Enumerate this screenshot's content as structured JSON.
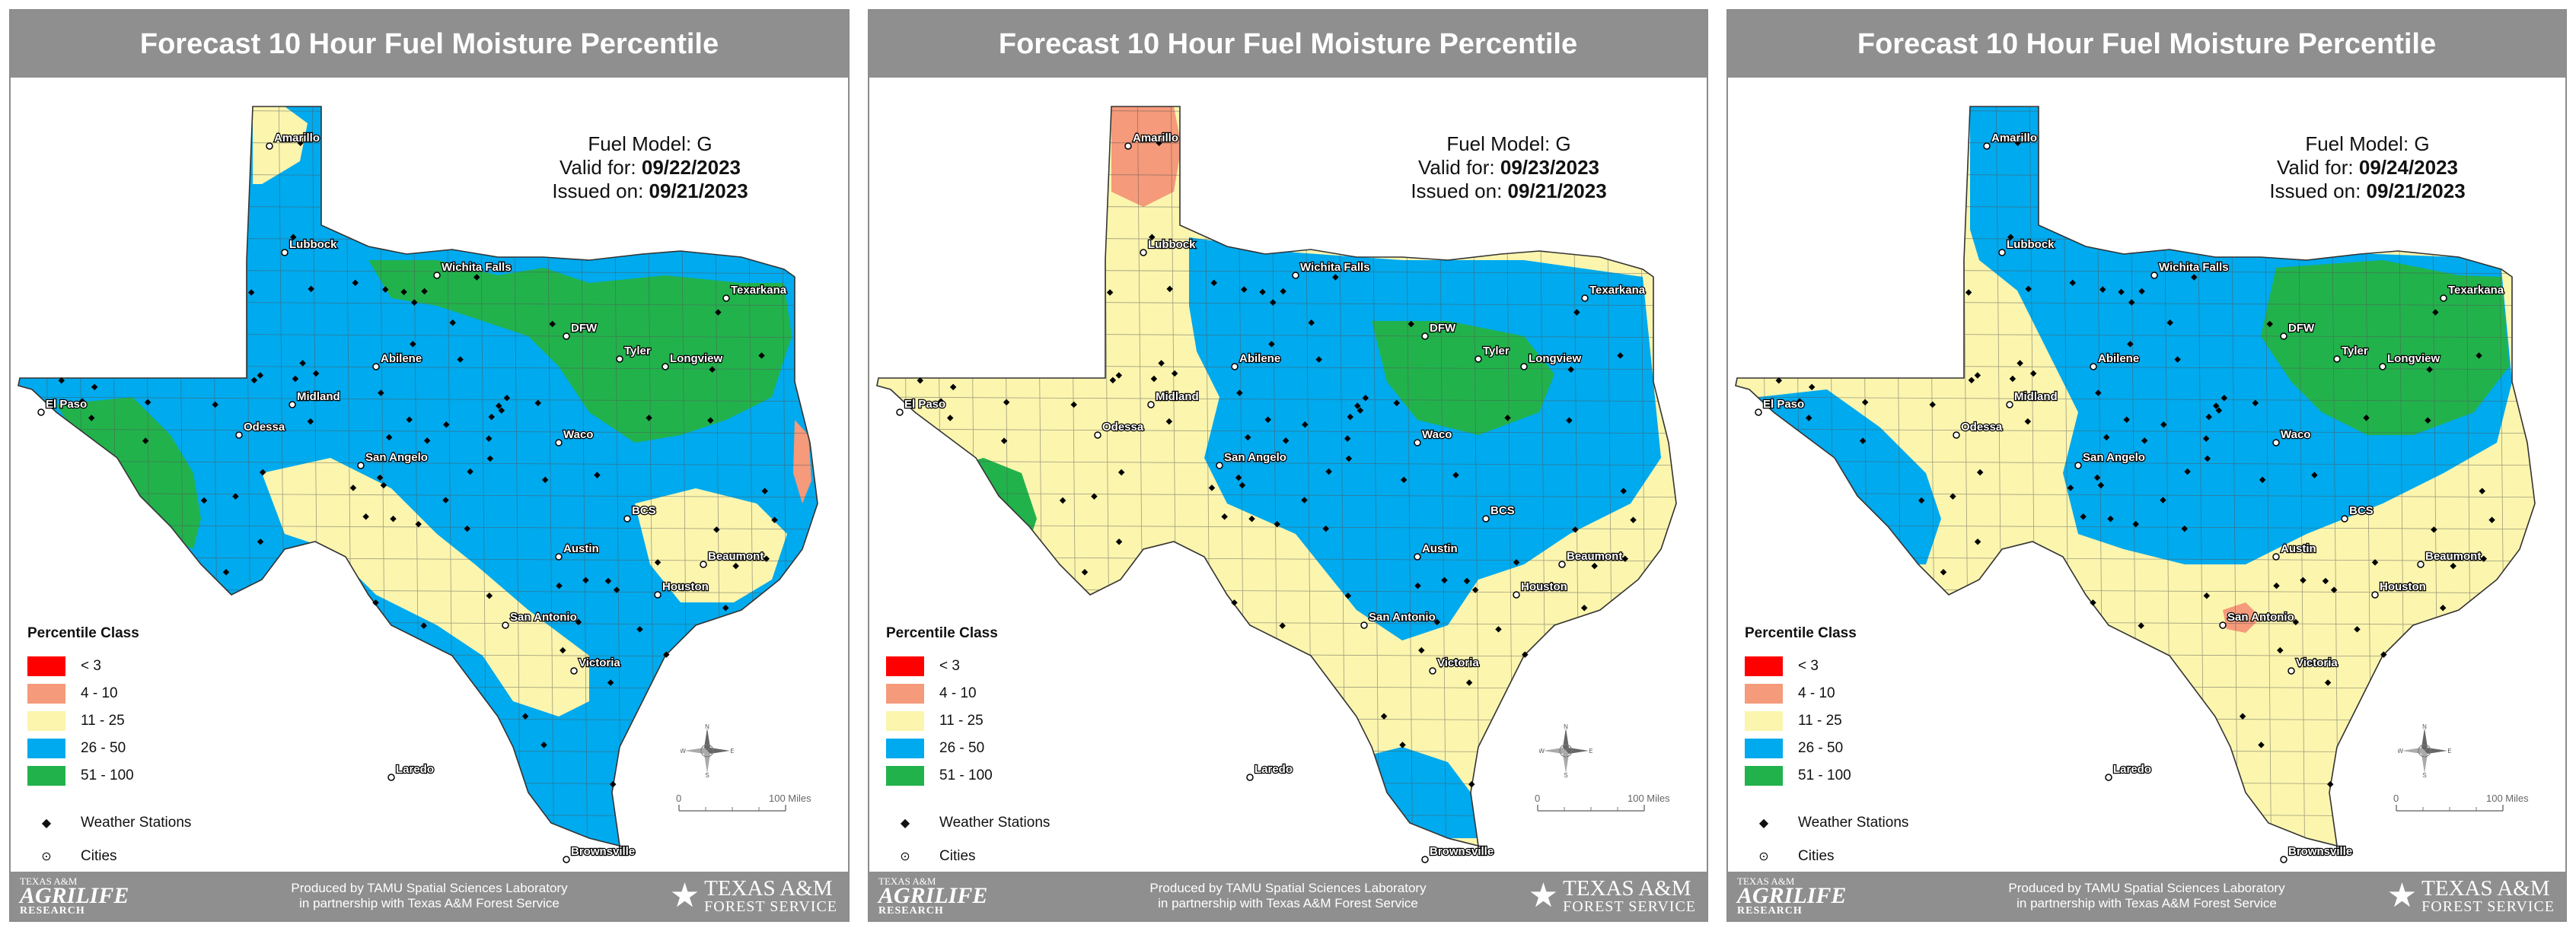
{
  "panels": [
    {
      "title": "Forecast 10 Hour Fuel Moisture Percentile",
      "fuel_model": "Fuel Model: G",
      "valid_label": "Valid for: ",
      "valid_date": "09/22/2023",
      "issued_label": "Issued on: ",
      "issued_date": "09/21/2023",
      "base_class": "26 - 50",
      "regions": [
        {
          "class": "11 - 25",
          "area": "northern panhandle tip"
        },
        {
          "class": "51 - 100",
          "area": "north-central Texas around DFW and Texarkana"
        },
        {
          "class": "51 - 100",
          "area": "far west Texas"
        },
        {
          "class": "11 - 25",
          "area": "south Texas and Rio Grande"
        },
        {
          "class": "11 - 25",
          "area": "southeast coast near Houston/Beaumont"
        },
        {
          "class": "4 - 10",
          "area": "east border spot"
        }
      ]
    },
    {
      "title": "Forecast 10 Hour Fuel Moisture Percentile",
      "fuel_model": "Fuel Model: G",
      "valid_label": "Valid for: ",
      "valid_date": "09/23/2023",
      "issued_label": "Issued on: ",
      "issued_date": "09/21/2023",
      "base_class": "11 - 25",
      "regions": [
        {
          "class": "4 - 10",
          "area": "northwest panhandle around Amarillo"
        },
        {
          "class": "26 - 50",
          "area": "central and north Texas"
        },
        {
          "class": "51 - 100",
          "area": "central Texas around Waco"
        },
        {
          "class": "51 - 100",
          "area": "far west Texas"
        },
        {
          "class": "26 - 50",
          "area": "lower Rio Grande valley"
        }
      ]
    },
    {
      "title": "Forecast 10 Hour Fuel Moisture Percentile",
      "fuel_model": "Fuel Model: G",
      "valid_label": "Valid for: ",
      "valid_date": "09/24/2023",
      "issued_label": "Issued on: ",
      "issued_date": "09/21/2023",
      "base_class": "11 - 25",
      "regions": [
        {
          "class": "26 - 50",
          "area": "panhandle and central Texas"
        },
        {
          "class": "51 - 100",
          "area": "northeast Texas"
        },
        {
          "class": "26 - 50",
          "area": "far west Texas"
        },
        {
          "class": "4 - 10",
          "area": "near San Antonio"
        }
      ]
    }
  ],
  "legend": {
    "title": "Percentile Class",
    "classes": [
      {
        "label": "< 3",
        "color": "#ff0000"
      },
      {
        "label": "4 - 10",
        "color": "#f59a7a"
      },
      {
        "label": "11 - 25",
        "color": "#fbf5ae"
      },
      {
        "label": "26 - 50",
        "color": "#00aaee"
      },
      {
        "label": "51 - 100",
        "color": "#22b24c"
      }
    ],
    "stations_label": "Weather Stations",
    "cities_label": "Cities"
  },
  "cities": [
    "Amarillo",
    "Lubbock",
    "Wichita Falls",
    "Texarkana",
    "DFW",
    "Tyler",
    "Longview",
    "Abilene",
    "Midland",
    "El Paso",
    "Odessa",
    "San Angelo",
    "Waco",
    "BCS",
    "Austin",
    "Beaumont",
    "Houston",
    "San Antonio",
    "Victoria",
    "Laredo",
    "Brownsville"
  ],
  "scale": {
    "zero": "0",
    "max": "100 Miles"
  },
  "compass": {
    "n": "N",
    "s": "S",
    "e": "E",
    "w": "W"
  },
  "footer": {
    "credit_line1": "Produced by TAMU Spatial Sciences Laboratory",
    "credit_line2": "in partnership with Texas A&M Forest Service",
    "agrilife_top": "TEXAS A&M",
    "agrilife_main": "AGRILIFE",
    "agrilife_sub": "RESEARCH",
    "tfs_main": "TEXAS A&M",
    "tfs_sub": "FOREST SERVICE"
  }
}
